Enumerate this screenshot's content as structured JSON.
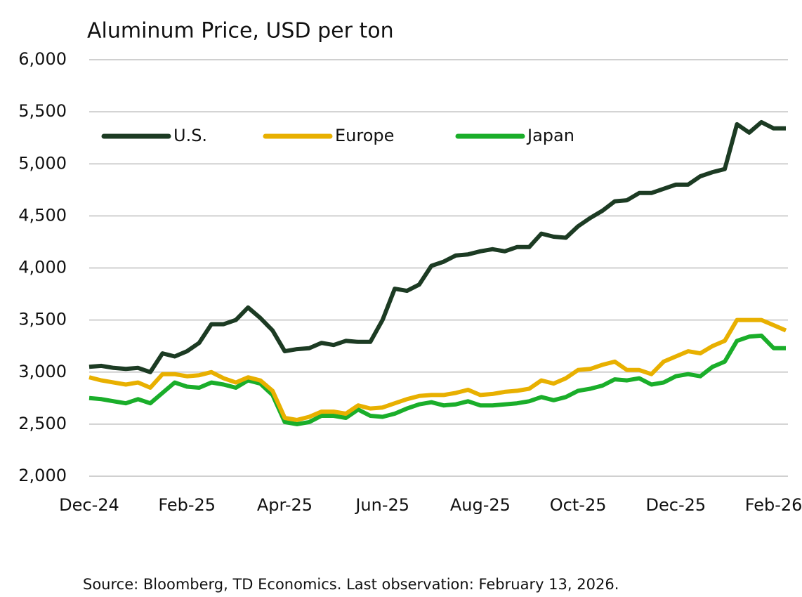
{
  "chart_data": {
    "type": "line",
    "title": "Aluminum Price, USD per ton",
    "source": "Source: Bloomberg, TD Economics. Last observation: February 13, 2026.",
    "categories": [
      "Dec-24",
      null,
      null,
      null,
      null,
      null,
      null,
      null,
      "Feb-25",
      null,
      null,
      null,
      null,
      null,
      null,
      null,
      "Apr-25",
      null,
      null,
      null,
      null,
      null,
      null,
      null,
      "Jun-25",
      null,
      null,
      null,
      null,
      null,
      null,
      null,
      "Aug-25",
      null,
      null,
      null,
      null,
      null,
      null,
      null,
      "Oct-25",
      null,
      null,
      null,
      null,
      null,
      null,
      null,
      "Dec-25",
      null,
      null,
      null,
      null,
      null,
      null,
      null,
      "Feb-26",
      null
    ],
    "series": [
      {
        "name": "U.S.",
        "color": "#1c3b23",
        "values": [
          3050,
          3060,
          3040,
          3030,
          3040,
          3000,
          3180,
          3150,
          3200,
          3280,
          3460,
          3460,
          3500,
          3620,
          3520,
          3400,
          3200,
          3220,
          3230,
          3280,
          3260,
          3300,
          3290,
          3290,
          3500,
          3800,
          3780,
          3840,
          4020,
          4060,
          4120,
          4130,
          4160,
          4180,
          4160,
          4200,
          4200,
          4330,
          4300,
          4290,
          4400,
          4480,
          4550,
          4640,
          4650,
          4720,
          4720,
          4760,
          4800,
          4800,
          4880,
          4920,
          4950,
          5380,
          5300,
          5400,
          5340,
          5340
        ]
      },
      {
        "name": "Europe",
        "color": "#e8b000",
        "values": [
          2950,
          2920,
          2900,
          2880,
          2900,
          2850,
          2980,
          2980,
          2960,
          2970,
          3000,
          2940,
          2900,
          2950,
          2920,
          2820,
          2560,
          2540,
          2570,
          2620,
          2620,
          2600,
          2680,
          2650,
          2660,
          2700,
          2740,
          2770,
          2780,
          2780,
          2800,
          2830,
          2780,
          2790,
          2810,
          2820,
          2840,
          2920,
          2890,
          2940,
          3020,
          3030,
          3070,
          3100,
          3020,
          3020,
          2980,
          3100,
          3150,
          3200,
          3180,
          3250,
          3300,
          3500,
          3500,
          3500,
          3450,
          3400
        ]
      },
      {
        "name": "Japan",
        "color": "#1aae2a",
        "values": [
          2750,
          2740,
          2720,
          2700,
          2740,
          2700,
          2800,
          2900,
          2860,
          2850,
          2900,
          2880,
          2850,
          2920,
          2890,
          2780,
          2520,
          2500,
          2520,
          2580,
          2580,
          2560,
          2640,
          2580,
          2570,
          2600,
          2650,
          2690,
          2710,
          2680,
          2690,
          2720,
          2680,
          2680,
          2690,
          2700,
          2720,
          2760,
          2730,
          2760,
          2820,
          2840,
          2870,
          2930,
          2920,
          2940,
          2880,
          2900,
          2960,
          2980,
          2960,
          3050,
          3100,
          3300,
          3340,
          3350,
          3230,
          3230
        ]
      }
    ],
    "ylim": [
      2000,
      6000
    ],
    "yticks": [
      {
        "value": 2000,
        "label": "2,000"
      },
      {
        "value": 2500,
        "label": "2,500"
      },
      {
        "value": 3000,
        "label": "3,000"
      },
      {
        "value": 3500,
        "label": "3,500"
      },
      {
        "value": 4000,
        "label": "4,000"
      },
      {
        "value": 4500,
        "label": "4,500"
      },
      {
        "value": 5000,
        "label": "5,000"
      },
      {
        "value": 5500,
        "label": "5,500"
      },
      {
        "value": 6000,
        "label": "6,000"
      }
    ],
    "grid": true,
    "legend": "top-left"
  }
}
